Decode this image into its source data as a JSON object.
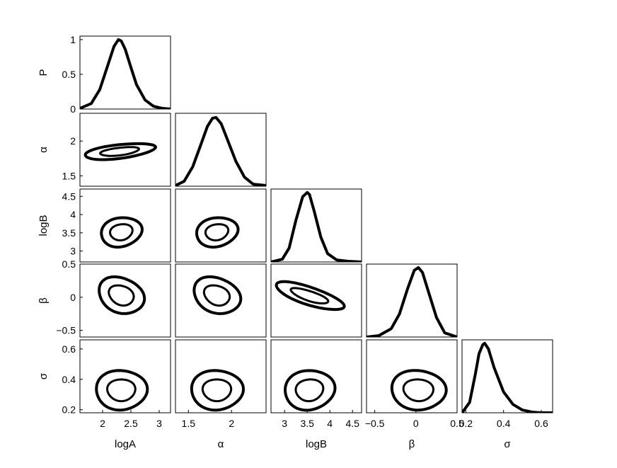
{
  "chart_data": {
    "type": "corner-plot",
    "parameters": [
      {
        "name": "logA",
        "label": "logA",
        "range": [
          1.6,
          3.2
        ],
        "ticks": [
          2,
          2.5,
          3
        ],
        "tick_labels": [
          "2",
          "2.5",
          "3"
        ]
      },
      {
        "name": "alpha",
        "label": "α",
        "range": [
          1.35,
          2.4
        ],
        "ticks": [
          1.5,
          2
        ],
        "tick_labels": [
          "1.5",
          "2"
        ]
      },
      {
        "name": "logB",
        "label": "logB",
        "range": [
          2.7,
          4.7
        ],
        "ticks": [
          3,
          3.5,
          4,
          4.5
        ],
        "tick_labels": [
          "3",
          "3.5",
          "4",
          "4.5"
        ]
      },
      {
        "name": "beta",
        "label": "β",
        "range": [
          -0.6,
          0.5
        ],
        "ticks": [
          -0.5,
          0,
          0.5
        ],
        "tick_labels": [
          "−0.5",
          "0",
          "0.5"
        ]
      },
      {
        "name": "sigma",
        "label": "σ",
        "range": [
          0.18,
          0.66
        ],
        "ticks": [
          0.2,
          0.4,
          0.6
        ],
        "tick_labels": [
          "0.2",
          "0.4",
          "0.6"
        ]
      }
    ],
    "row_labels": [
      "P",
      "α",
      "logB",
      "β",
      "σ"
    ],
    "density_axis": {
      "label": "P",
      "ticks": [
        0,
        0.5,
        1
      ],
      "tick_labels": [
        "0",
        "0.5",
        "1"
      ],
      "range": [
        0,
        1.05
      ]
    },
    "marginals": [
      {
        "param": "logA",
        "x": [
          1.6,
          1.8,
          1.95,
          2.1,
          2.2,
          2.28,
          2.33,
          2.4,
          2.5,
          2.6,
          2.75,
          2.9,
          3.05,
          3.2
        ],
        "y": [
          0.01,
          0.08,
          0.28,
          0.65,
          0.9,
          1.0,
          0.98,
          0.86,
          0.6,
          0.35,
          0.13,
          0.04,
          0.01,
          0.0
        ]
      },
      {
        "param": "alpha",
        "x": [
          1.35,
          1.45,
          1.55,
          1.65,
          1.72,
          1.78,
          1.82,
          1.88,
          1.95,
          2.05,
          2.15,
          2.25,
          2.4
        ],
        "y": [
          0.01,
          0.07,
          0.28,
          0.62,
          0.86,
          0.98,
          0.99,
          0.9,
          0.68,
          0.36,
          0.13,
          0.03,
          0.01
        ]
      },
      {
        "param": "logB",
        "x": [
          2.7,
          2.95,
          3.1,
          3.25,
          3.4,
          3.5,
          3.55,
          3.65,
          3.8,
          3.95,
          4.15,
          4.4,
          4.7
        ],
        "y": [
          0.0,
          0.04,
          0.2,
          0.6,
          0.94,
          1.0,
          0.97,
          0.74,
          0.36,
          0.12,
          0.03,
          0.01,
          0.0
        ]
      },
      {
        "param": "beta",
        "x": [
          -0.6,
          -0.45,
          -0.3,
          -0.2,
          -0.1,
          -0.02,
          0.03,
          0.08,
          0.15,
          0.25,
          0.35,
          0.5
        ],
        "y": [
          0.0,
          0.02,
          0.12,
          0.33,
          0.7,
          0.96,
          1.0,
          0.93,
          0.66,
          0.28,
          0.06,
          0.0
        ]
      },
      {
        "param": "sigma",
        "x": [
          0.18,
          0.22,
          0.25,
          0.27,
          0.29,
          0.3,
          0.32,
          0.35,
          0.4,
          0.45,
          0.5,
          0.55,
          0.6,
          0.66
        ],
        "y": [
          0.0,
          0.15,
          0.55,
          0.85,
          0.98,
          1.0,
          0.92,
          0.65,
          0.3,
          0.12,
          0.04,
          0.01,
          0.0,
          0.0
        ]
      }
    ],
    "contours": [
      {
        "x": "logA",
        "y": "alpha",
        "center": [
          2.3,
          1.85
        ],
        "semi": [
          0.62,
          0.1
        ],
        "angle_deg": 0.14,
        "levels": [
          0.55,
          1.0
        ]
      },
      {
        "x": "logA",
        "y": "logB",
        "center": [
          2.33,
          3.52
        ],
        "semi": [
          0.36,
          0.4
        ],
        "angle_deg": 0.12,
        "levels": [
          0.55,
          1.0
        ]
      },
      {
        "x": "alpha",
        "y": "logB",
        "center": [
          1.83,
          3.52
        ],
        "semi": [
          0.24,
          0.4
        ],
        "angle_deg": 0.12,
        "levels": [
          0.55,
          1.0
        ]
      },
      {
        "x": "logB",
        "y": "beta",
        "center": [
          3.55,
          0.02
        ],
        "semi": [
          0.75,
          0.14
        ],
        "angle_deg": -0.38,
        "levels": [
          0.55,
          1.0
        ]
      },
      {
        "x": "logA",
        "y": "beta",
        "center": [
          2.33,
          0.03
        ],
        "semi": [
          0.4,
          0.27
        ],
        "angle_deg": -0.22,
        "levels": [
          0.55,
          1.0
        ]
      },
      {
        "x": "alpha",
        "y": "beta",
        "center": [
          1.83,
          0.03
        ],
        "semi": [
          0.27,
          0.27
        ],
        "angle_deg": -0.22,
        "levels": [
          0.55,
          1.0
        ]
      },
      {
        "x": "logA",
        "y": "sigma",
        "center": [
          2.33,
          0.33
        ],
        "semi": [
          0.45,
          0.13
        ],
        "angle_deg": 0.0,
        "levels": [
          0.55,
          1.0
        ]
      },
      {
        "x": "alpha",
        "y": "sigma",
        "center": [
          1.83,
          0.33
        ],
        "semi": [
          0.3,
          0.13
        ],
        "angle_deg": 0.0,
        "levels": [
          0.55,
          1.0
        ]
      },
      {
        "x": "logB",
        "y": "sigma",
        "center": [
          3.55,
          0.33
        ],
        "semi": [
          0.55,
          0.13
        ],
        "angle_deg": 0.06,
        "levels": [
          0.55,
          1.0
        ]
      },
      {
        "x": "beta",
        "y": "sigma",
        "center": [
          0.03,
          0.33
        ],
        "semi": [
          0.33,
          0.13
        ],
        "angle_deg": -0.04,
        "levels": [
          0.55,
          1.0
        ]
      }
    ],
    "style": {
      "line_color": "#000000",
      "background": "#ffffff",
      "grid": false
    }
  }
}
